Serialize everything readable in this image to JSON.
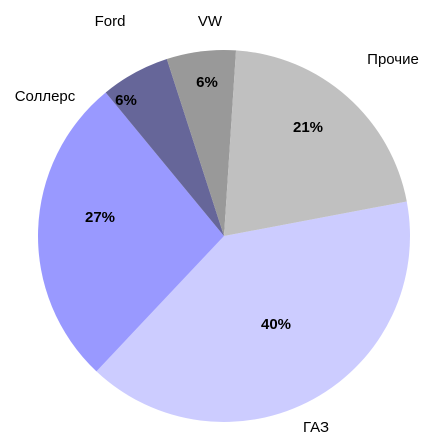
{
  "chart_data": {
    "type": "pie",
    "categories": [
      "ГАЗ",
      "Соллерс",
      "Ford",
      "VW",
      "Прочие"
    ],
    "values": [
      40,
      27,
      6,
      6,
      21
    ],
    "value_labels": [
      "40%",
      "27%",
      "6%",
      "6%",
      "21%"
    ],
    "colors": [
      "#ccccff",
      "#9999ff",
      "#666699",
      "#999999",
      "#c0c0c0"
    ]
  }
}
